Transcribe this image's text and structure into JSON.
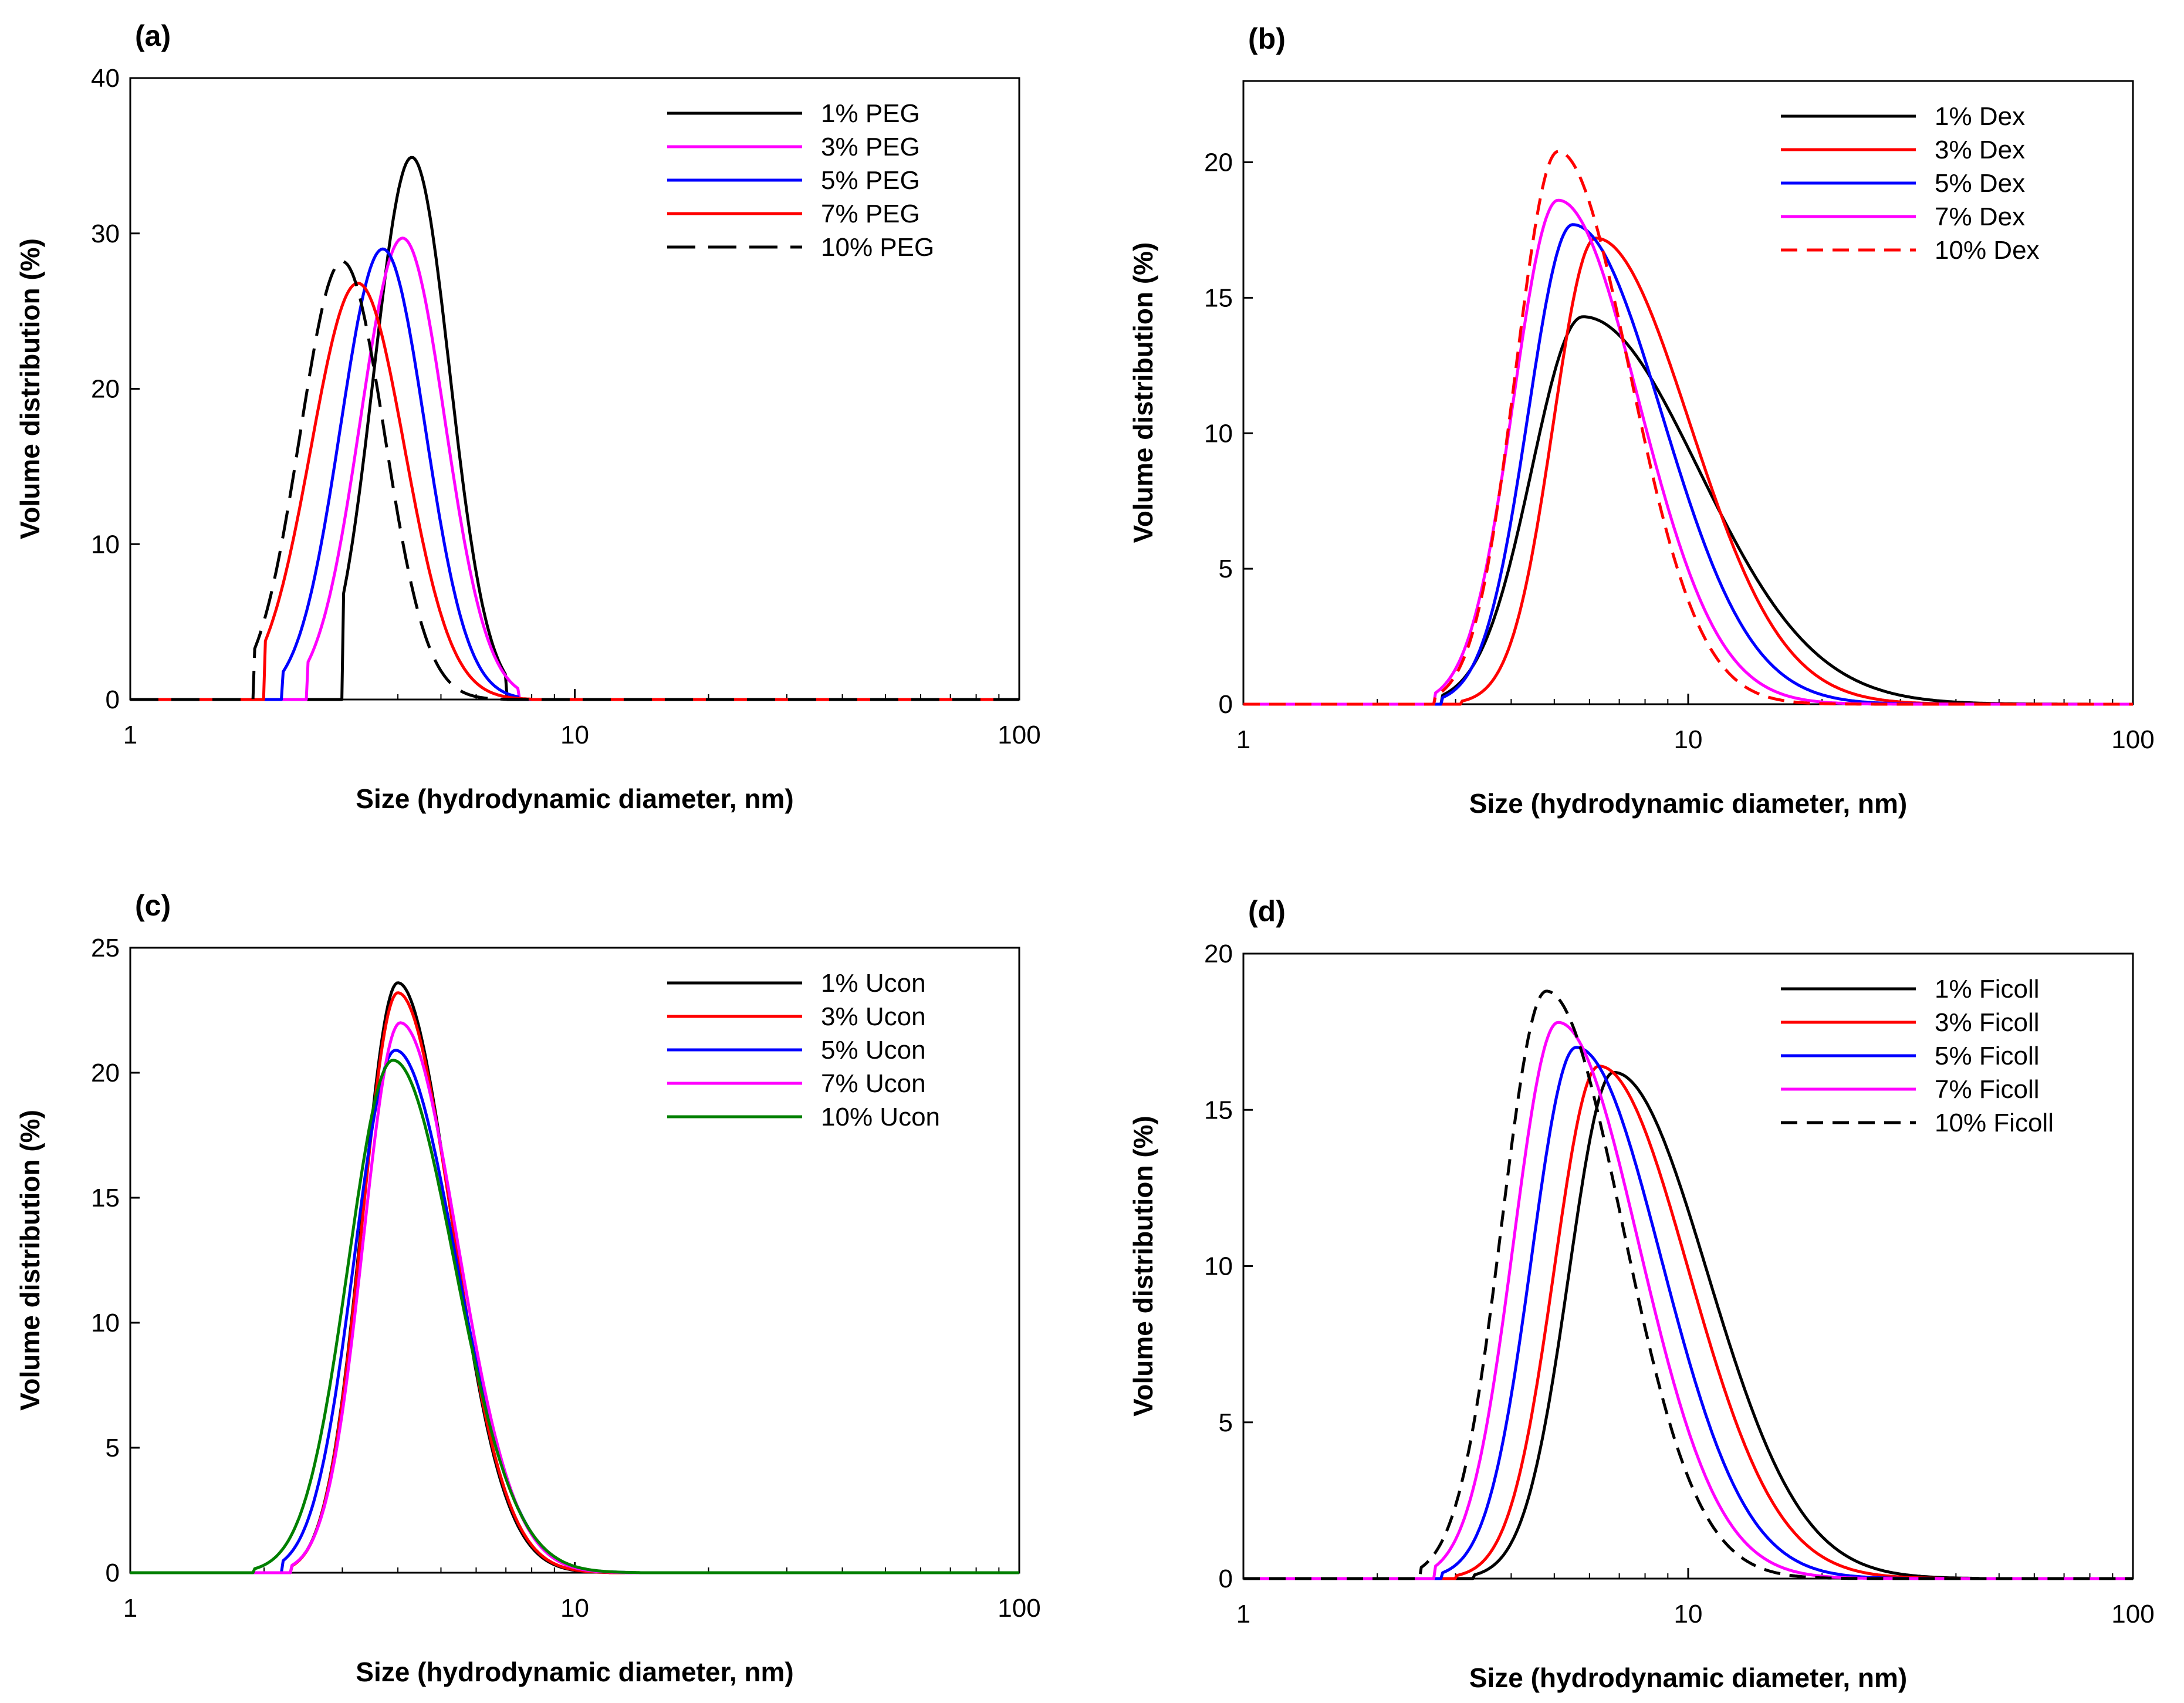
{
  "chart_data": [
    {
      "type": "line",
      "panel_label": "(a)",
      "xlabel": "Size (hydrodynamic diameter, nm)",
      "ylabel": "Volume distribution (%)",
      "xscale": "log",
      "xlim": [
        1,
        100
      ],
      "ylim": [
        0,
        40
      ],
      "xticks": [
        1,
        10,
        100
      ],
      "xtick_labels": [
        "1",
        "10",
        "100"
      ],
      "yticks": [
        0,
        10,
        20,
        30,
        40
      ],
      "ytick_labels": [
        "0",
        "10",
        "20",
        "30",
        "40"
      ],
      "legend_position": "top-right",
      "grid": false,
      "series": [
        {
          "name": "1% PEG",
          "color": "#000000",
          "dash": "solid",
          "peak_x": 4.3,
          "peak_y": 34.9,
          "width": 0.085,
          "start_x": 3.0,
          "end_x": 7.0
        },
        {
          "name": "3% PEG",
          "color": "#ff00ff",
          "dash": "solid",
          "peak_x": 4.1,
          "peak_y": 29.7,
          "width": 0.095,
          "start_x": 2.5,
          "end_x": 7.5
        },
        {
          "name": "5% PEG",
          "color": "#0000ff",
          "dash": "solid",
          "peak_x": 3.7,
          "peak_y": 29.0,
          "width": 0.095,
          "start_x": 2.2,
          "end_x": 7.5
        },
        {
          "name": "7% PEG",
          "color": "#ff0000",
          "dash": "solid",
          "peak_x": 3.25,
          "peak_y": 26.8,
          "width": 0.105,
          "start_x": 2.0,
          "end_x": 8.0
        },
        {
          "name": "10% PEG",
          "color": "#000000",
          "dash": "long-dash",
          "peak_x": 3.0,
          "peak_y": 28.2,
          "width": 0.095,
          "start_x": 1.9,
          "end_x": 8.0
        }
      ]
    },
    {
      "type": "line",
      "panel_label": "(b)",
      "xlabel": "Size (hydrodynamic diameter, nm)",
      "ylabel": "Volume distribution (%)",
      "xscale": "log",
      "xlim": [
        1,
        100
      ],
      "ylim": [
        0,
        23
      ],
      "xticks": [
        1,
        10,
        100
      ],
      "xtick_labels": [
        "1",
        "10",
        "100"
      ],
      "yticks": [
        0,
        5,
        10,
        15,
        20
      ],
      "ytick_labels": [
        "0",
        "5",
        "10",
        "15",
        "20"
      ],
      "legend_position": "top-right",
      "grid": false,
      "series": [
        {
          "name": "1% Dex",
          "color": "#000000",
          "dash": "solid",
          "peak_x": 5.8,
          "peak_y": 14.3,
          "wl": 0.115,
          "wr": 0.26,
          "start_x": 2.8,
          "end_x": 80
        },
        {
          "name": "3% Dex",
          "color": "#ff0000",
          "dash": "solid",
          "peak_x": 6.2,
          "peak_y": 17.2,
          "wl": 0.095,
          "wr": 0.21,
          "start_x": 3.1,
          "end_x": 60
        },
        {
          "name": "5% Dex",
          "color": "#0000ff",
          "dash": "solid",
          "peak_x": 5.5,
          "peak_y": 17.7,
          "wl": 0.1,
          "wr": 0.2,
          "start_x": 2.8,
          "end_x": 50
        },
        {
          "name": "7% Dex",
          "color": "#ff00ff",
          "dash": "solid",
          "peak_x": 5.1,
          "peak_y": 18.6,
          "wl": 0.1,
          "wr": 0.18,
          "start_x": 2.7,
          "end_x": 40
        },
        {
          "name": "10% Dex",
          "color": "#ff0000",
          "dash": "dashed",
          "peak_x": 5.1,
          "peak_y": 20.4,
          "wl": 0.095,
          "wr": 0.16,
          "start_x": 2.7,
          "end_x": 35
        }
      ]
    },
    {
      "type": "line",
      "panel_label": "(c)",
      "xlabel": "Size (hydrodynamic diameter, nm)",
      "ylabel": "Volume distribution (%)",
      "xscale": "log",
      "xlim": [
        1,
        100
      ],
      "ylim": [
        0,
        25
      ],
      "xticks": [
        1,
        10,
        100
      ],
      "xtick_labels": [
        "1",
        "10",
        "100"
      ],
      "yticks": [
        0,
        5,
        10,
        15,
        20,
        25
      ],
      "ytick_labels": [
        "0",
        "5",
        "10",
        "15",
        "20",
        "25"
      ],
      "legend_position": "top-right",
      "grid": false,
      "series": [
        {
          "name": "1% Ucon",
          "color": "#000000",
          "dash": "solid",
          "peak_x": 4.0,
          "peak_y": 23.6,
          "wl": 0.08,
          "wr": 0.12,
          "start_x": 2.3,
          "end_x": 12
        },
        {
          "name": "3% Ucon",
          "color": "#ff0000",
          "dash": "solid",
          "peak_x": 4.0,
          "peak_y": 23.2,
          "wl": 0.08,
          "wr": 0.122,
          "start_x": 2.3,
          "end_x": 12
        },
        {
          "name": "5% Ucon",
          "color": "#0000ff",
          "dash": "solid",
          "peak_x": 3.95,
          "peak_y": 20.9,
          "wl": 0.092,
          "wr": 0.135,
          "start_x": 2.2,
          "end_x": 13
        },
        {
          "name": "7% Ucon",
          "color": "#ff00ff",
          "dash": "solid",
          "peak_x": 4.05,
          "peak_y": 22.0,
          "wl": 0.083,
          "wr": 0.128,
          "start_x": 2.3,
          "end_x": 13
        },
        {
          "name": "10% Ucon",
          "color": "#008000",
          "dash": "solid",
          "peak_x": 3.9,
          "peak_y": 20.5,
          "wl": 0.1,
          "wr": 0.138,
          "start_x": 1.9,
          "end_x": 14
        }
      ]
    },
    {
      "type": "line",
      "panel_label": "(d)",
      "xlabel": "Size (hydrodynamic diameter, nm)",
      "ylabel": "Volume distribution (%)",
      "xscale": "log",
      "xlim": [
        1,
        100
      ],
      "ylim": [
        0,
        20
      ],
      "xticks": [
        1,
        10,
        100
      ],
      "xtick_labels": [
        "1",
        "10",
        "100"
      ],
      "yticks": [
        0,
        5,
        10,
        15,
        20
      ],
      "ytick_labels": [
        "0",
        "5",
        "10",
        "15",
        "20"
      ],
      "legend_position": "top-right",
      "grid": false,
      "series": [
        {
          "name": "1% Ficoll",
          "color": "#000000",
          "dash": "solid",
          "peak_x": 6.8,
          "peak_y": 16.2,
          "wl": 0.1,
          "wr": 0.21,
          "start_x": 3.3,
          "end_x": 45
        },
        {
          "name": "3% Ficoll",
          "color": "#ff0000",
          "dash": "solid",
          "peak_x": 6.3,
          "peak_y": 16.4,
          "wl": 0.1,
          "wr": 0.2,
          "start_x": 3.0,
          "end_x": 42
        },
        {
          "name": "5% Ficoll",
          "color": "#0000ff",
          "dash": "solid",
          "peak_x": 5.6,
          "peak_y": 17.0,
          "wl": 0.1,
          "wr": 0.19,
          "start_x": 2.8,
          "end_x": 38
        },
        {
          "name": "7% Ficoll",
          "color": "#ff00ff",
          "dash": "solid",
          "peak_x": 5.1,
          "peak_y": 17.8,
          "wl": 0.1,
          "wr": 0.18,
          "start_x": 2.7,
          "end_x": 35
        },
        {
          "name": "10% Ficoll",
          "color": "#000000",
          "dash": "dashed",
          "peak_x": 4.8,
          "peak_y": 18.8,
          "wl": 0.1,
          "wr": 0.17,
          "start_x": 2.5,
          "end_x": 32
        }
      ]
    }
  ]
}
